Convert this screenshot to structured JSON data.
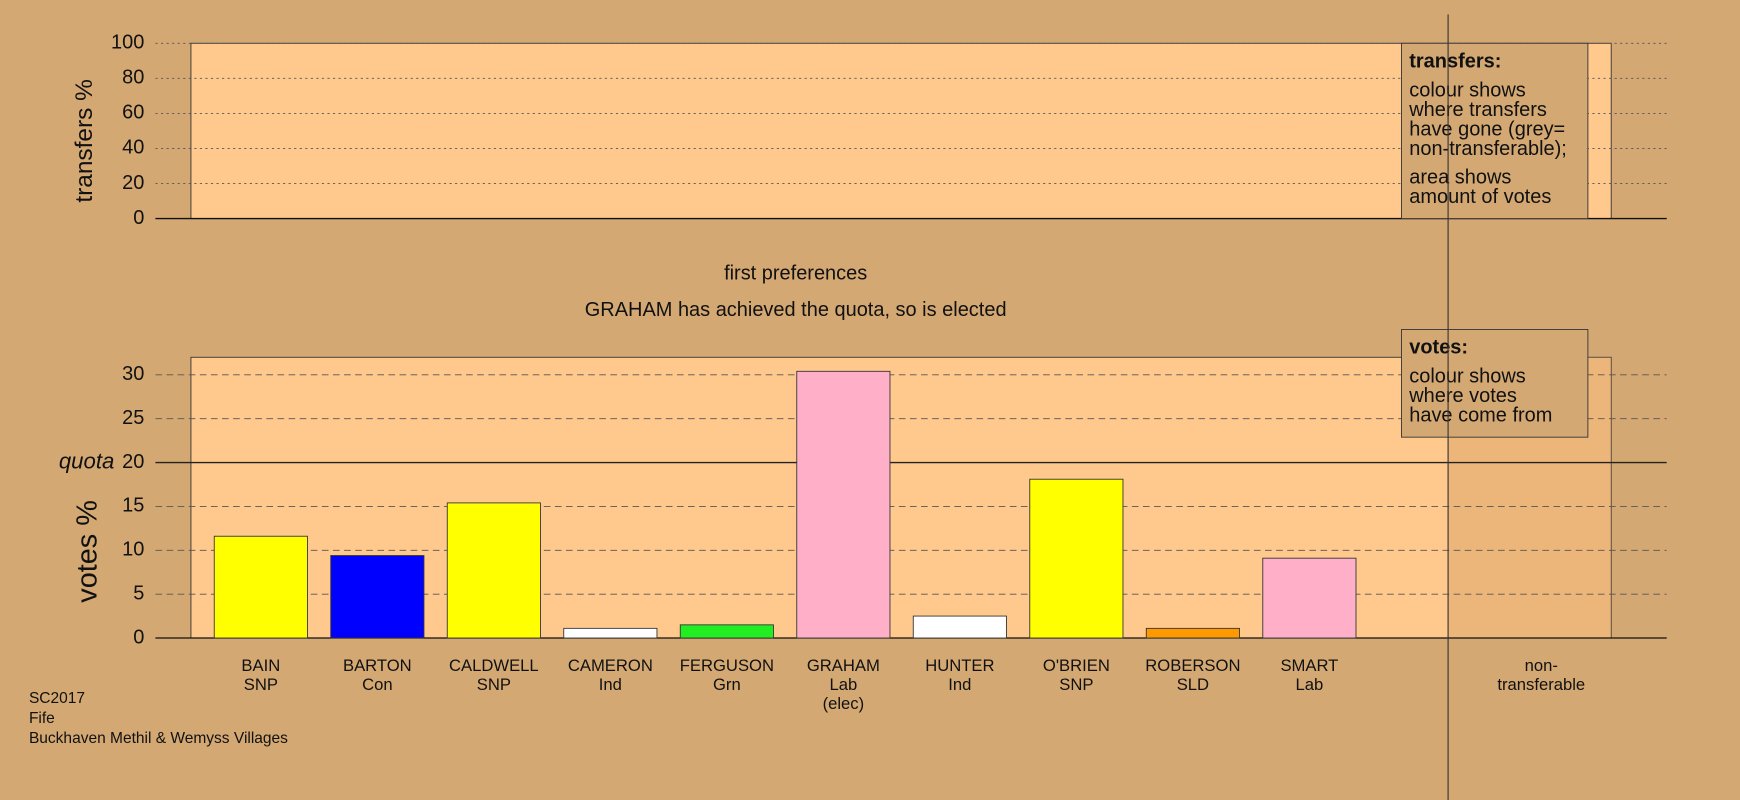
{
  "chart_data": [
    {
      "type": "bar",
      "y_label": "transfers %",
      "ylim": [
        0,
        100
      ],
      "yticks": [
        0,
        20,
        40,
        60,
        80,
        100
      ],
      "grid": true,
      "legend_title": "transfers:",
      "legend_lines": [
        "colour shows",
        "where transfers",
        "have gone (grey=",
        "non-transferable);",
        "area shows",
        "amount of votes"
      ]
    },
    {
      "type": "bar",
      "title": "first preferences",
      "subtitle": "GRAHAM has achieved the quota, so is elected",
      "y_label": "votes %",
      "ylim": [
        0,
        32
      ],
      "yticks": [
        0,
        5,
        10,
        15,
        20,
        25,
        30
      ],
      "grid": true,
      "quota": {
        "value": 20,
        "label": "quota"
      },
      "categories": [
        [
          "BAIN",
          "SNP"
        ],
        [
          "BARTON",
          "Con"
        ],
        [
          "CALDWELL",
          "SNP"
        ],
        [
          "CAMERON",
          "Ind"
        ],
        [
          "FERGUSON",
          "Grn"
        ],
        [
          "GRAHAM",
          "Lab",
          "(elec)"
        ],
        [
          "HUNTER",
          "Ind"
        ],
        [
          "O'BRIEN",
          "SNP"
        ],
        [
          "ROBERSON",
          "SLD"
        ],
        [
          "SMART",
          "Lab"
        ],
        [
          "non-",
          "transferable"
        ]
      ],
      "values": [
        11.6,
        9.4,
        15.4,
        1.1,
        1.5,
        30.4,
        2.5,
        18.1,
        1.1,
        9.1,
        null
      ],
      "colors": [
        "#ffff00",
        "#0000ff",
        "#ffff00",
        "#ffffff",
        "#22ee22",
        "#ffb0c8",
        "#ffffff",
        "#ffff00",
        "#ff9900",
        "#ffb0c8",
        null
      ],
      "legend_title": "votes:",
      "legend_lines": [
        "colour shows",
        "where votes",
        "have come from"
      ]
    }
  ],
  "footer": [
    "SC2017",
    "Fife",
    "Buckhaven Methil & Wemyss Villages"
  ]
}
